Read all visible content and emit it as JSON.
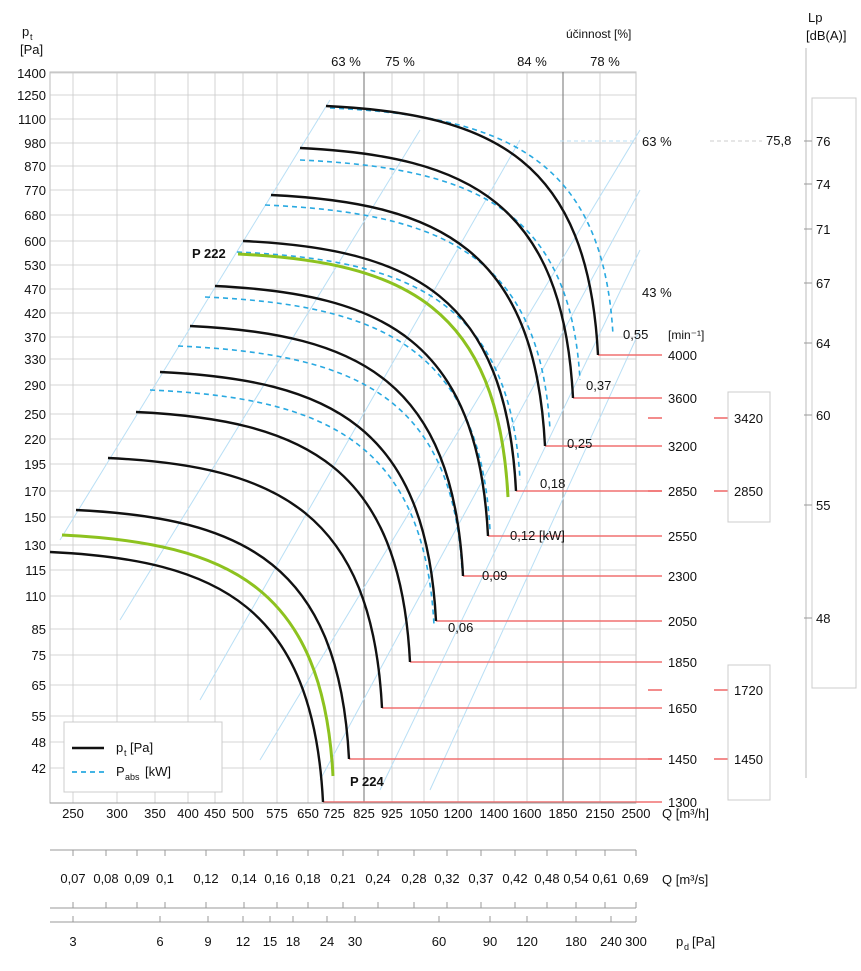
{
  "chart_data": {
    "type": "line",
    "title": "",
    "y_axis": {
      "label_main": "p",
      "label_sub": "t",
      "unit": "[Pa]",
      "ticks": [
        "1400",
        "1250",
        "1100",
        "980",
        "870",
        "770",
        "680",
        "600",
        "530",
        "470",
        "420",
        "370",
        "330",
        "290",
        "250",
        "220",
        "195",
        "170",
        "150",
        "130",
        "115",
        "110",
        "85",
        "75",
        "65",
        "55",
        "48",
        "42"
      ]
    },
    "x_axis_flow_h": {
      "label": "Q [m³/h]",
      "ticks": [
        "250",
        "300",
        "350",
        "400",
        "450",
        "500",
        "575",
        "650",
        "725",
        "825",
        "925",
        "1050",
        "1200",
        "1400",
        "1600",
        "1850",
        "2150",
        "2500"
      ]
    },
    "x_axis_flow_s": {
      "label": "Q [m³/s]",
      "ticks": [
        "0,07",
        "0,08",
        "0,09",
        "0,1",
        "0,12",
        "0,14",
        "0,16",
        "0,18",
        "0,21",
        "0,24",
        "0,28",
        "0,32",
        "0,37",
        "0,42",
        "0,48",
        "0,54",
        "0,61",
        "0,69"
      ]
    },
    "x_axis_pd": {
      "label_main": "p",
      "label_sub": "d",
      "unit": "[Pa]",
      "ticks": [
        "3",
        "6",
        "9",
        "12",
        "15",
        "18",
        "24",
        "30",
        "60",
        "90",
        "120",
        "180",
        "240",
        "300"
      ]
    },
    "efficiency": {
      "header": "účinnost [%]",
      "top_labels": [
        "63 %",
        "75 %",
        "84 %",
        "78 %"
      ],
      "side_labels": [
        "63 %",
        "43 %"
      ]
    },
    "speed_unit": "[min⁻¹]",
    "speeds": [
      "4000",
      "3600",
      "3200",
      "2850",
      "2550",
      "2300",
      "2050",
      "1850",
      "1650",
      "1450",
      "1300"
    ],
    "power_labels": [
      "0,55",
      "0,37",
      "0,25",
      "0,18",
      "0,12 [kW]",
      "0,09",
      "0,06"
    ],
    "series": [
      {
        "name": "P 222",
        "label": "P 222",
        "color": "#8dc21f"
      },
      {
        "name": "P 224",
        "label": "P 224",
        "color": "#8dc21f"
      }
    ],
    "noise": {
      "label_main": "Lp",
      "label_unit": "[dB(A)]",
      "ticks": [
        "76",
        "74",
        "71",
        "67",
        "64",
        "60",
        "55",
        "48"
      ],
      "marker_value": "75,8",
      "speed_markers": [
        "3420",
        "2850",
        "1720",
        "1450"
      ]
    },
    "legend": {
      "placement": "bottom-left",
      "pt_label": "p",
      "pt_sub": "t",
      "pt_unit": " [Pa]",
      "pabs_label": "P",
      "pabs_sub": "abs",
      "pabs_unit": " [kW]"
    },
    "colors": {
      "pt": "#111111",
      "pabs": "#29a9e1",
      "model": "#8dc21f",
      "speed": "#f07070",
      "iso": "#b9dff5",
      "grid": "#c8c8c8"
    },
    "grid": true
  }
}
